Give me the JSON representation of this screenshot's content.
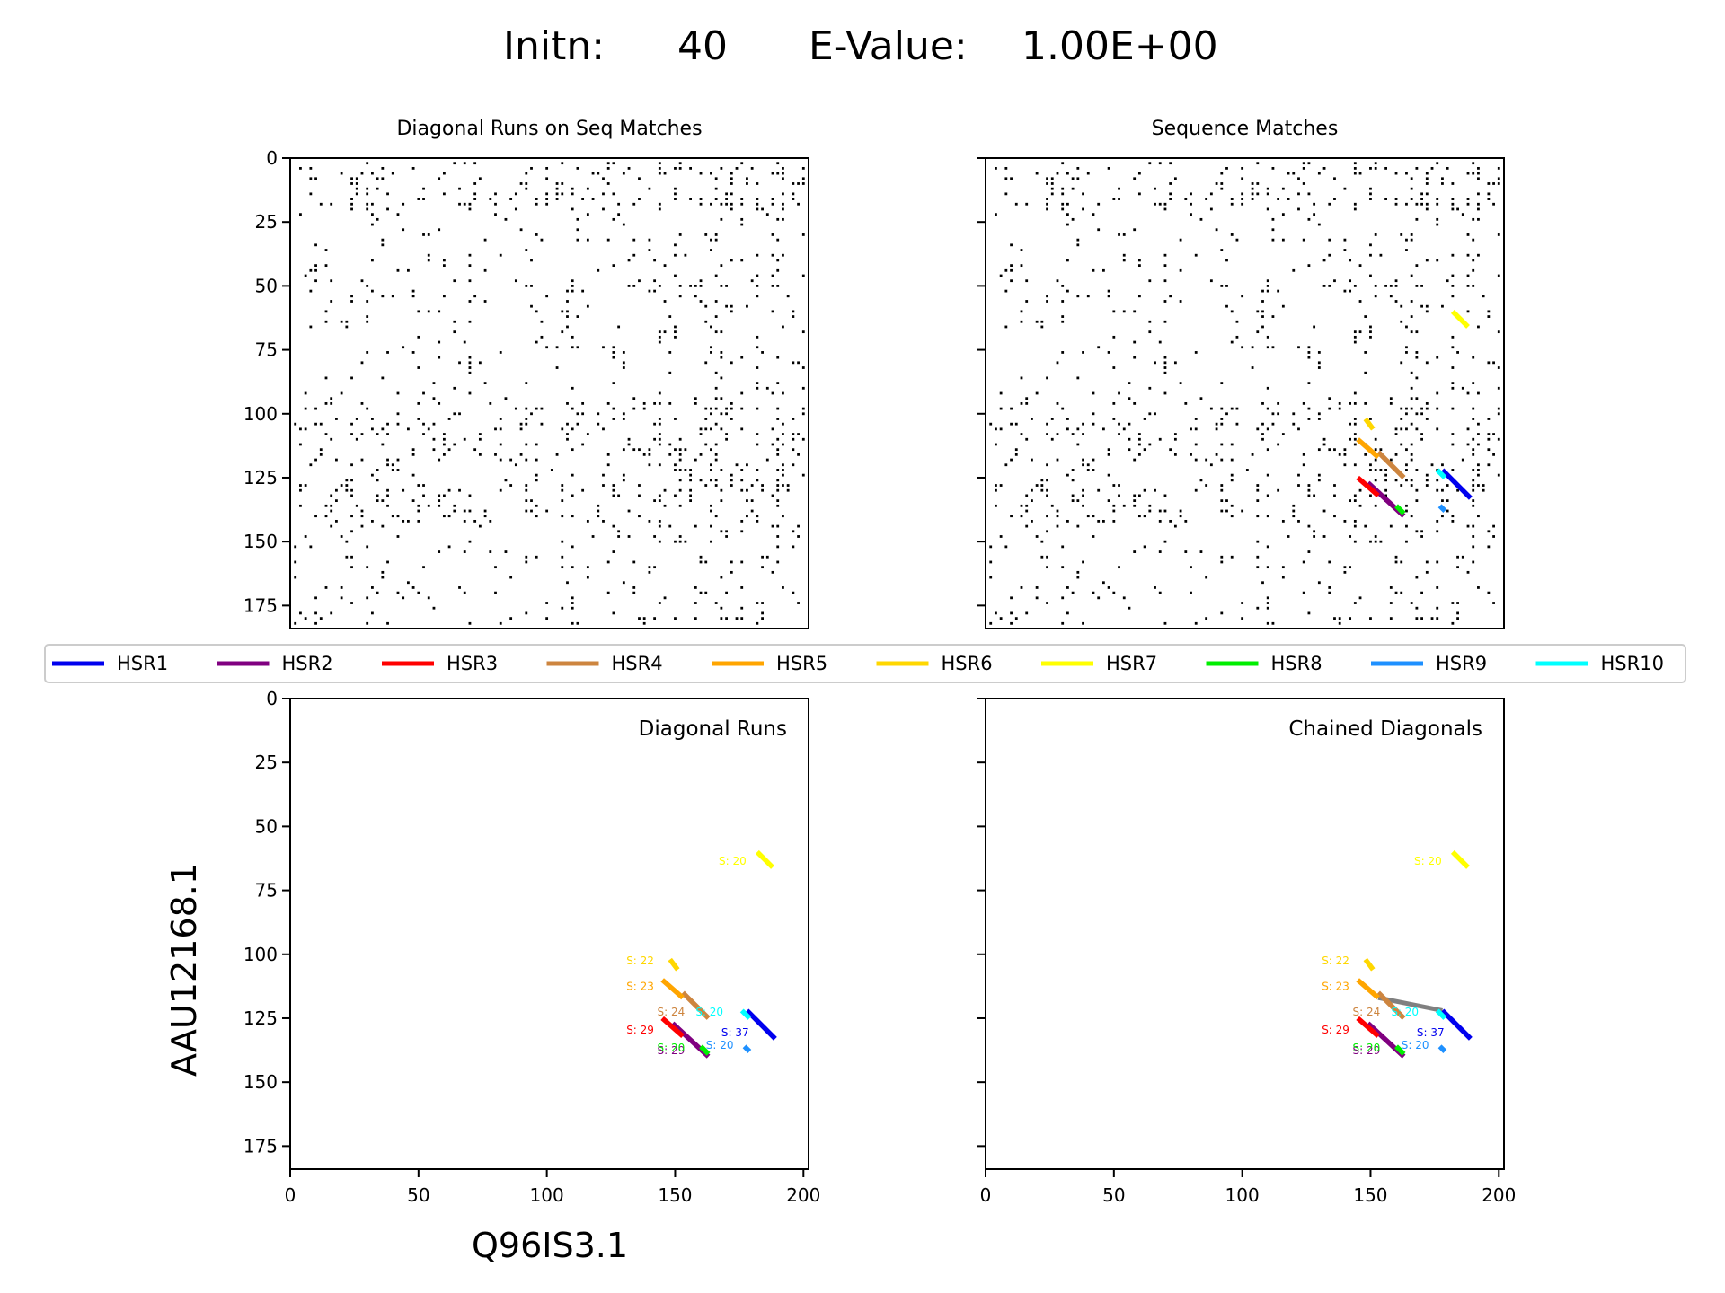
{
  "figure": {
    "title_initn_label": "Initn:",
    "title_initn_value": "40",
    "title_evalue_label": "E-Value:",
    "title_evalue_value": "1.00E+00",
    "xlabel": "Q96IS3.1",
    "ylabel": "AAU12168.1"
  },
  "colors": {
    "HSR1": "#0000ee",
    "HSR2": "#800080",
    "HSR3": "#ff0000",
    "HSR4": "#cd853f",
    "HSR5": "#ffa500",
    "HSR6": "#ffd700",
    "HSR7": "#ffff00",
    "HSR8": "#00ee00",
    "HSR9": "#1e90ff",
    "HSR10": "#00ffff",
    "chain": "#808080"
  },
  "chart_data": [
    {
      "type": "scatter",
      "panel": "top-left",
      "title": "Diagonal Runs on Seq Matches",
      "xlim": [
        0,
        202
      ],
      "ylim": [
        184,
        0
      ],
      "xticks": [
        0,
        50,
        100,
        150,
        200
      ],
      "yticks": [
        0,
        25,
        50,
        75,
        100,
        125,
        150,
        175
      ],
      "show_xtick_labels": false,
      "show_ytick_labels": true,
      "dot_matrix": true,
      "segments": []
    },
    {
      "type": "scatter",
      "panel": "top-right",
      "title": "Sequence Matches",
      "xlim": [
        0,
        202
      ],
      "ylim": [
        184,
        0
      ],
      "xticks": [
        0,
        50,
        100,
        150,
        200
      ],
      "yticks": [
        0,
        25,
        50,
        75,
        100,
        125,
        150,
        175
      ],
      "show_xtick_labels": false,
      "show_ytick_labels": false,
      "dot_matrix": true,
      "segments": [
        {
          "name": "HSR1",
          "x1": 178,
          "y1": 122,
          "x2": 189,
          "y2": 133
        },
        {
          "name": "HSR2",
          "x1": 149,
          "y1": 127,
          "x2": 163,
          "y2": 140
        },
        {
          "name": "HSR3",
          "x1": 145,
          "y1": 125,
          "x2": 153,
          "y2": 132
        },
        {
          "name": "HSR4",
          "x1": 153,
          "y1": 115,
          "x2": 163,
          "y2": 125
        },
        {
          "name": "HSR5",
          "x1": 145,
          "y1": 110,
          "x2": 153,
          "y2": 117
        },
        {
          "name": "HSR6",
          "x1": 148,
          "y1": 102,
          "x2": 151,
          "y2": 106
        },
        {
          "name": "HSR7",
          "x1": 182,
          "y1": 60,
          "x2": 188,
          "y2": 66
        },
        {
          "name": "HSR8",
          "x1": 160,
          "y1": 136,
          "x2": 163,
          "y2": 139
        },
        {
          "name": "HSR9",
          "x1": 177,
          "y1": 136,
          "x2": 179,
          "y2": 138
        },
        {
          "name": "HSR10",
          "x1": 176,
          "y1": 122,
          "x2": 179,
          "y2": 125
        }
      ]
    },
    {
      "type": "line",
      "panel": "bottom-left",
      "title": "Diagonal Runs",
      "xlim": [
        0,
        202
      ],
      "ylim": [
        184,
        0
      ],
      "xticks": [
        0,
        50,
        100,
        150,
        200
      ],
      "yticks": [
        0,
        25,
        50,
        75,
        100,
        125,
        150,
        175
      ],
      "show_xtick_labels": true,
      "show_ytick_labels": true,
      "dot_matrix": false,
      "segments": [
        {
          "name": "HSR1",
          "x1": 178,
          "y1": 122,
          "x2": 189,
          "y2": 133,
          "label": "S: 37",
          "lx": 168,
          "ly": 132
        },
        {
          "name": "HSR2",
          "x1": 149,
          "y1": 127,
          "x2": 163,
          "y2": 140,
          "label": "S: 29",
          "lx": 143,
          "ly": 139
        },
        {
          "name": "HSR3",
          "x1": 145,
          "y1": 125,
          "x2": 153,
          "y2": 132,
          "label": "S: 29",
          "lx": 131,
          "ly": 131
        },
        {
          "name": "HSR4",
          "x1": 153,
          "y1": 115,
          "x2": 163,
          "y2": 125,
          "label": "S: 24",
          "lx": 143,
          "ly": 124
        },
        {
          "name": "HSR5",
          "x1": 145,
          "y1": 110,
          "x2": 153,
          "y2": 117,
          "label": "S: 23",
          "lx": 131,
          "ly": 114
        },
        {
          "name": "HSR6",
          "x1": 148,
          "y1": 102,
          "x2": 151,
          "y2": 106,
          "label": "S: 22",
          "lx": 131,
          "ly": 104
        },
        {
          "name": "HSR7",
          "x1": 182,
          "y1": 60,
          "x2": 188,
          "y2": 66,
          "label": "S: 20",
          "lx": 167,
          "ly": 65
        },
        {
          "name": "HSR8",
          "x1": 160,
          "y1": 136,
          "x2": 163,
          "y2": 139,
          "label": "S: 20",
          "lx": 143,
          "ly": 138
        },
        {
          "name": "HSR9",
          "x1": 177,
          "y1": 136,
          "x2": 179,
          "y2": 138,
          "label": "S: 20",
          "lx": 162,
          "ly": 137
        },
        {
          "name": "HSR10",
          "x1": 176,
          "y1": 122,
          "x2": 179,
          "y2": 125,
          "label": "S: 20",
          "lx": 158,
          "ly": 124
        }
      ]
    },
    {
      "type": "line",
      "panel": "bottom-right",
      "title": "Chained Diagonals",
      "xlim": [
        0,
        202
      ],
      "ylim": [
        184,
        0
      ],
      "xticks": [
        0,
        50,
        100,
        150,
        200
      ],
      "yticks": [
        0,
        25,
        50,
        75,
        100,
        125,
        150,
        175
      ],
      "show_xtick_labels": true,
      "show_ytick_labels": false,
      "dot_matrix": false,
      "chain": [
        {
          "x1": 153,
          "y1": 117,
          "x2": 178,
          "y2": 122
        }
      ],
      "segments": [
        {
          "name": "HSR1",
          "x1": 178,
          "y1": 122,
          "x2": 189,
          "y2": 133,
          "label": "S: 37",
          "lx": 168,
          "ly": 132
        },
        {
          "name": "HSR2",
          "x1": 149,
          "y1": 127,
          "x2": 163,
          "y2": 140,
          "label": "S: 29",
          "lx": 143,
          "ly": 139
        },
        {
          "name": "HSR3",
          "x1": 145,
          "y1": 125,
          "x2": 153,
          "y2": 132,
          "label": "S: 29",
          "lx": 131,
          "ly": 131
        },
        {
          "name": "HSR4",
          "x1": 153,
          "y1": 115,
          "x2": 163,
          "y2": 125,
          "label": "S: 24",
          "lx": 143,
          "ly": 124
        },
        {
          "name": "HSR5",
          "x1": 145,
          "y1": 110,
          "x2": 153,
          "y2": 117,
          "label": "S: 23",
          "lx": 131,
          "ly": 114
        },
        {
          "name": "HSR6",
          "x1": 148,
          "y1": 102,
          "x2": 151,
          "y2": 106,
          "label": "S: 22",
          "lx": 131,
          "ly": 104
        },
        {
          "name": "HSR7",
          "x1": 182,
          "y1": 60,
          "x2": 188,
          "y2": 66,
          "label": "S: 20",
          "lx": 167,
          "ly": 65
        },
        {
          "name": "HSR8",
          "x1": 160,
          "y1": 136,
          "x2": 163,
          "y2": 139,
          "label": "S: 20",
          "lx": 143,
          "ly": 138
        },
        {
          "name": "HSR9",
          "x1": 177,
          "y1": 136,
          "x2": 179,
          "y2": 138,
          "label": "S: 20",
          "lx": 162,
          "ly": 137
        },
        {
          "name": "HSR10",
          "x1": 176,
          "y1": 122,
          "x2": 179,
          "y2": 125,
          "label": "S: 20",
          "lx": 158,
          "ly": 124
        }
      ]
    }
  ],
  "legend": {
    "placement": "center",
    "items": [
      "HSR1",
      "HSR2",
      "HSR3",
      "HSR4",
      "HSR5",
      "HSR6",
      "HSR7",
      "HSR8",
      "HSR9",
      "HSR10"
    ]
  }
}
